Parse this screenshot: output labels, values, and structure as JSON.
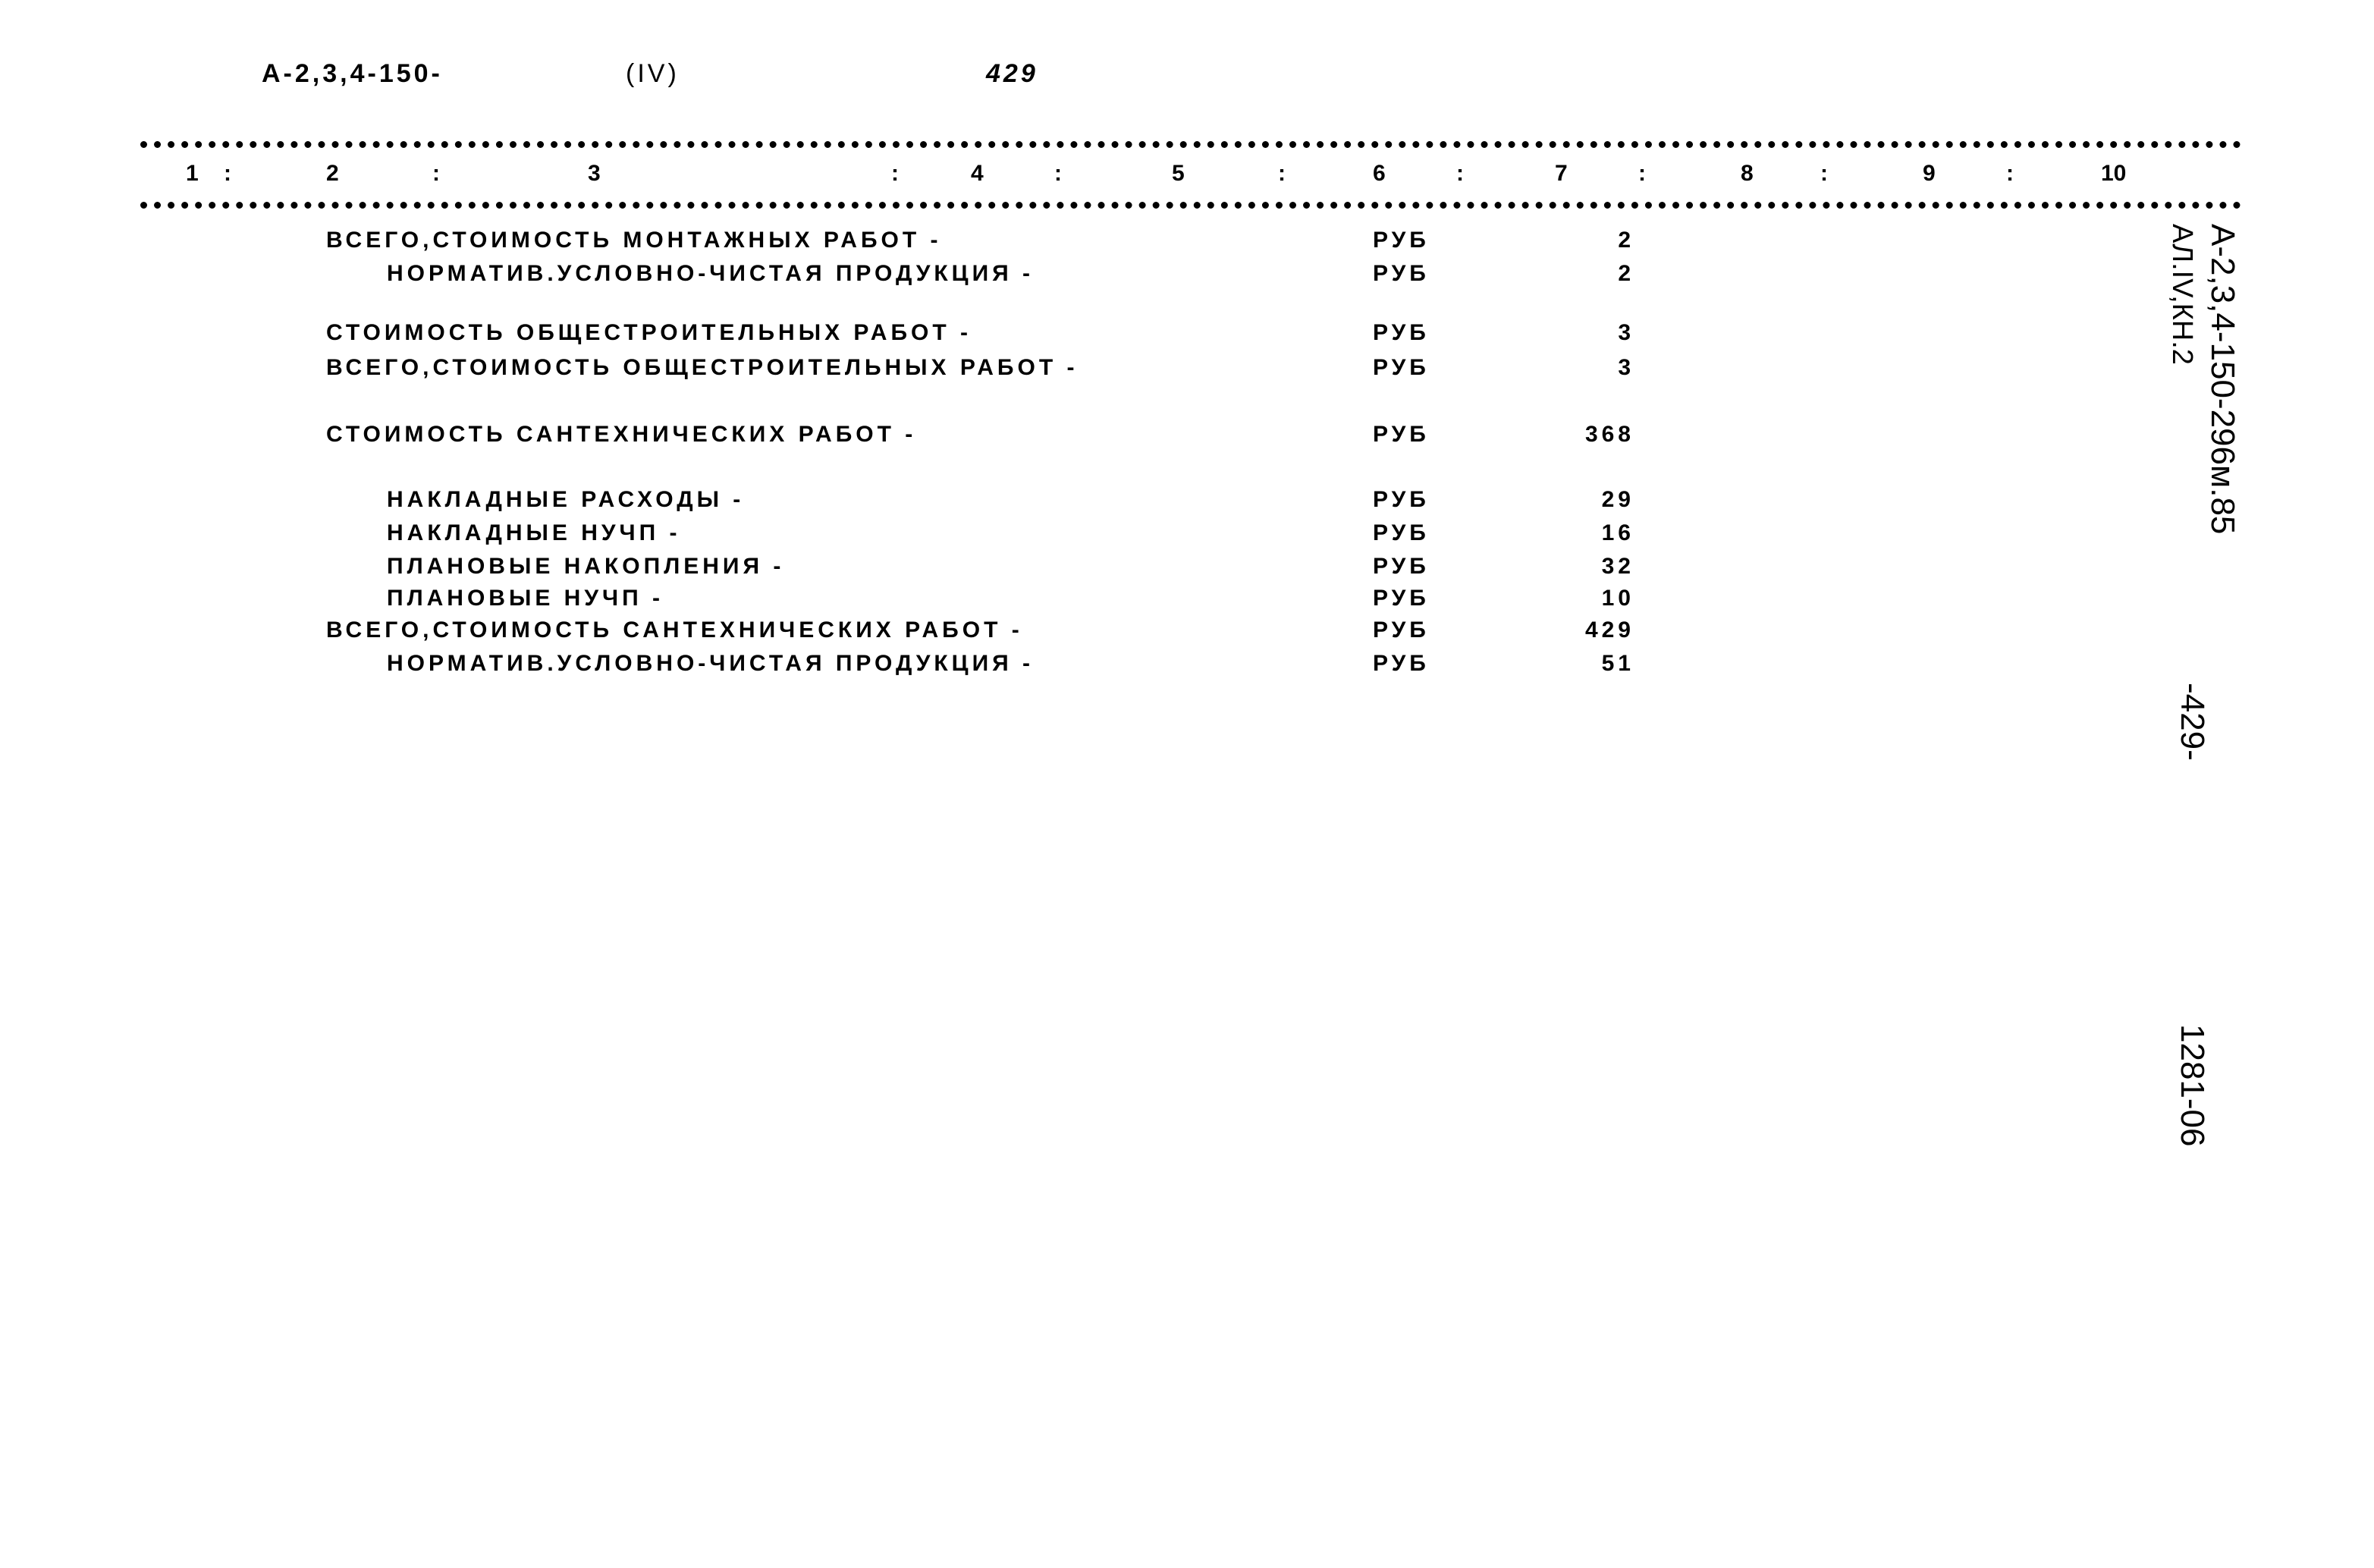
{
  "header": {
    "code": "А-2,3,4-150-",
    "part": "(IV)",
    "page": "429"
  },
  "columns": [
    "1",
    "2",
    "3",
    "4",
    "5",
    "6",
    "7",
    "8",
    "9",
    "10"
  ],
  "rows": [
    {
      "label": "ВСЕГО,СТОИМОСТЬ МОНТАЖНЫХ РАБОТ -",
      "unit": "РУБ",
      "value": "2",
      "indent": false
    },
    {
      "label": "НОРМАТИВ.УСЛОВНО-ЧИСТАЯ ПРОДУКЦИЯ -",
      "unit": "РУБ",
      "value": "2",
      "indent": true
    },
    {
      "label": "СТОИМОСТЬ ОБЩЕСТРОИТЕЛЬНЫХ РАБОТ -",
      "unit": "РУБ",
      "value": "3",
      "indent": false
    },
    {
      "label": "ВСЕГО,СТОИМОСТЬ ОБЩЕСТРОИТЕЛЬНЫХ РАБОТ -",
      "unit": "РУБ",
      "value": "3",
      "indent": false
    },
    {
      "label": "СТОИМОСТЬ САНТЕХНИЧЕСКИХ РАБОТ -",
      "unit": "РУБ",
      "value": "368",
      "indent": false
    },
    {
      "label": "НАКЛАДНЫЕ РАСХОДЫ -",
      "unit": "РУБ",
      "value": "29",
      "indent": true
    },
    {
      "label": "НАКЛАДНЫЕ НУЧП -",
      "unit": "РУБ",
      "value": "16",
      "indent": true
    },
    {
      "label": "ПЛАНОВЫЕ НАКОПЛЕНИЯ -",
      "unit": "РУБ",
      "value": "32",
      "indent": true
    },
    {
      "label": "ПЛАНОВЫЕ НУЧП -",
      "unit": "РУБ",
      "value": "10",
      "indent": true
    },
    {
      "label": "ВСЕГО,СТОИМОСТЬ САНТЕХНИЧЕСКИХ РАБОТ -",
      "unit": "РУБ",
      "value": "429",
      "indent": false
    },
    {
      "label": "НОРМАТИВ.УСЛОВНО-ЧИСТАЯ ПРОДУКЦИЯ -",
      "unit": "РУБ",
      "value": "51",
      "indent": true
    }
  ],
  "margin": {
    "doc_code": "А-2,3,4-150-296м.85",
    "album": "АЛ.IV,КН.2",
    "page": "-429-",
    "sheet": "1281-06"
  }
}
